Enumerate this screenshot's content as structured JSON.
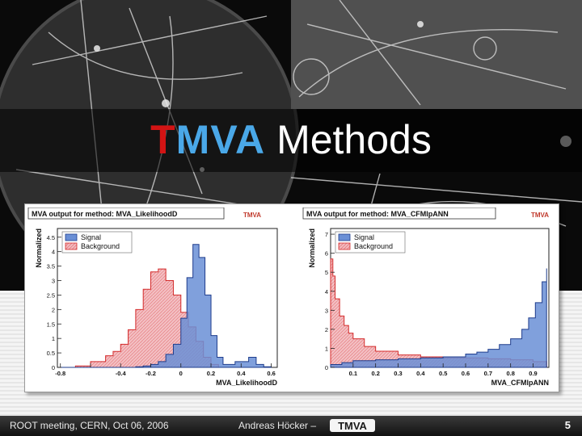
{
  "slide": {
    "title_part1": "T",
    "title_part2": "MVA",
    "title_part3": "Methods",
    "footer_left": "ROOT meeting, CERN, Oct 06, 2006",
    "footer_author": "Andreas Höcker  –",
    "footer_logo_text": "TMVA",
    "page_number": "5"
  },
  "colors": {
    "signal_fill": "#6a8fd6",
    "signal_line": "#1e3c8c",
    "background_fill": "#f2b8bd",
    "background_line": "#d42a2a",
    "title_red": "#d21414",
    "title_blue": "#4aa8e8"
  },
  "icons": [
    "tmva-logo-icon"
  ],
  "chart_data": [
    {
      "type": "area",
      "title": "MVA output for method: MVA_LikelihoodD",
      "logo_text": "TMVA",
      "xlabel": "MVA_LikelihoodD",
      "ylabel": "Normalized",
      "xlim": [
        -0.82,
        0.64
      ],
      "ylim": [
        0,
        4.8
      ],
      "xticks": [
        -0.8,
        -0.6,
        -0.4,
        -0.2,
        0,
        0.2,
        0.4,
        0.6
      ],
      "xtick_labels": [
        "-0.8",
        "",
        "-0.4",
        "-0.2",
        "0",
        "0.2",
        "0.4",
        "0.6"
      ],
      "yticks": [
        0,
        0.5,
        1,
        1.5,
        2,
        2.5,
        3,
        3.5,
        4,
        4.5
      ],
      "ytick_labels": [
        "0",
        "0.5",
        "1",
        "1.5",
        "2",
        "2.5",
        "3",
        "3.5",
        "4",
        "4.5"
      ],
      "legend": "top-left",
      "series": [
        {
          "name": "Signal",
          "x": [
            -0.8,
            -0.7,
            -0.6,
            -0.5,
            -0.4,
            -0.3,
            -0.25,
            -0.2,
            -0.15,
            -0.1,
            -0.05,
            0.0,
            0.04,
            0.08,
            0.12,
            0.16,
            0.2,
            0.24,
            0.28,
            0.32,
            0.36,
            0.4,
            0.45,
            0.5,
            0.55,
            0.6
          ],
          "y": [
            0,
            0,
            0,
            0,
            0,
            0.02,
            0.05,
            0.1,
            0.2,
            0.45,
            0.8,
            1.7,
            3.1,
            4.25,
            3.8,
            2.5,
            1.1,
            0.35,
            0.1,
            0.1,
            0.2,
            0.2,
            0.35,
            0.1,
            0.02,
            0
          ]
        },
        {
          "name": "Background",
          "x": [
            -0.8,
            -0.7,
            -0.6,
            -0.5,
            -0.45,
            -0.4,
            -0.35,
            -0.3,
            -0.25,
            -0.2,
            -0.15,
            -0.1,
            -0.05,
            0.0,
            0.05,
            0.1,
            0.15,
            0.2,
            0.25
          ],
          "y": [
            0,
            0.05,
            0.2,
            0.4,
            0.55,
            0.8,
            1.3,
            2.0,
            2.7,
            3.3,
            3.4,
            3.0,
            2.5,
            1.9,
            1.4,
            0.9,
            0.35,
            0.1,
            0
          ]
        }
      ]
    },
    {
      "type": "area",
      "title": "MVA output for method: MVA_CFMlpANN",
      "logo_text": "TMVA",
      "xlabel": "MVA_CFMlpANN",
      "ylabel": "Normalized",
      "xlim": [
        0,
        0.97
      ],
      "ylim": [
        0,
        7.3
      ],
      "xticks": [
        0.1,
        0.2,
        0.3,
        0.4,
        0.5,
        0.6,
        0.7,
        0.8,
        0.9
      ],
      "xtick_labels": [
        "0.1",
        "0.2",
        "0.3",
        "0.4",
        "0.5",
        "0.6",
        "0.7",
        "0.8",
        "0.9"
      ],
      "yticks": [
        0,
        1,
        2,
        3,
        4,
        5,
        6,
        7
      ],
      "ytick_labels": [
        "0",
        "1",
        "2",
        "3",
        "4",
        "5",
        "6",
        "7"
      ],
      "legend": "top-left",
      "series": [
        {
          "name": "Signal",
          "x": [
            0.0,
            0.05,
            0.1,
            0.2,
            0.3,
            0.4,
            0.5,
            0.6,
            0.65,
            0.7,
            0.75,
            0.8,
            0.85,
            0.88,
            0.91,
            0.94,
            0.96
          ],
          "y": [
            0.15,
            0.25,
            0.35,
            0.4,
            0.45,
            0.5,
            0.55,
            0.7,
            0.8,
            0.95,
            1.2,
            1.5,
            2.0,
            2.6,
            3.4,
            4.5,
            5.2
          ]
        },
        {
          "name": "Background",
          "x": [
            0.0,
            0.01,
            0.02,
            0.04,
            0.06,
            0.08,
            0.1,
            0.15,
            0.2,
            0.3,
            0.4,
            0.5,
            0.6,
            0.7,
            0.8,
            0.9,
            0.96
          ],
          "y": [
            5.7,
            4.8,
            3.6,
            2.7,
            2.2,
            1.8,
            1.5,
            1.1,
            0.85,
            0.65,
            0.55,
            0.5,
            0.5,
            0.45,
            0.4,
            0.3,
            0.2
          ]
        }
      ]
    }
  ]
}
